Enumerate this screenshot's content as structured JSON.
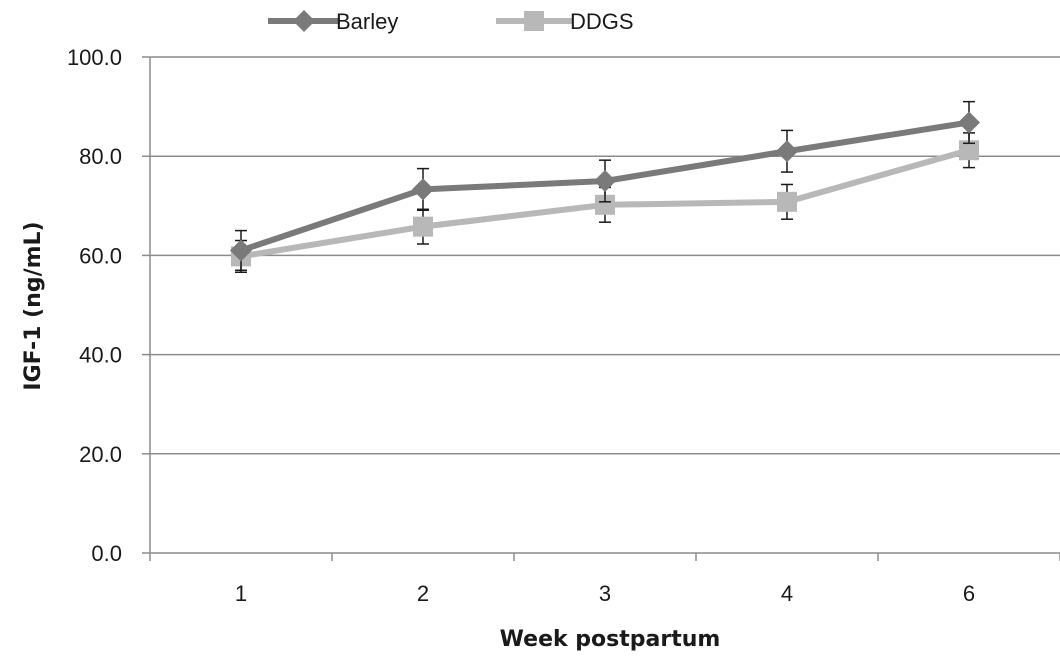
{
  "chart_data": {
    "type": "line",
    "categories": [
      "1",
      "2",
      "3",
      "4",
      "6"
    ],
    "series": [
      {
        "name": "Barley",
        "values": [
          61.0,
          73.3,
          75.0,
          81.0,
          86.8
        ],
        "error": [
          4.0,
          4.2,
          4.2,
          4.2,
          4.2
        ],
        "color": "#7a7a7a",
        "marker": "diamond"
      },
      {
        "name": "DDGS",
        "values": [
          59.8,
          65.8,
          70.2,
          70.8,
          81.2
        ],
        "error": [
          3.2,
          3.5,
          3.5,
          3.5,
          3.5
        ],
        "color": "#b8b8b8",
        "marker": "square"
      }
    ],
    "xlabel": "Week postpartum",
    "ylabel": "IGF-1 (ng/mL)",
    "ylim": [
      0,
      100
    ],
    "yticks": [
      "0.0",
      "20.0",
      "40.0",
      "60.0",
      "80.0",
      "100.0"
    ],
    "grid": true,
    "legend_position": "top"
  }
}
